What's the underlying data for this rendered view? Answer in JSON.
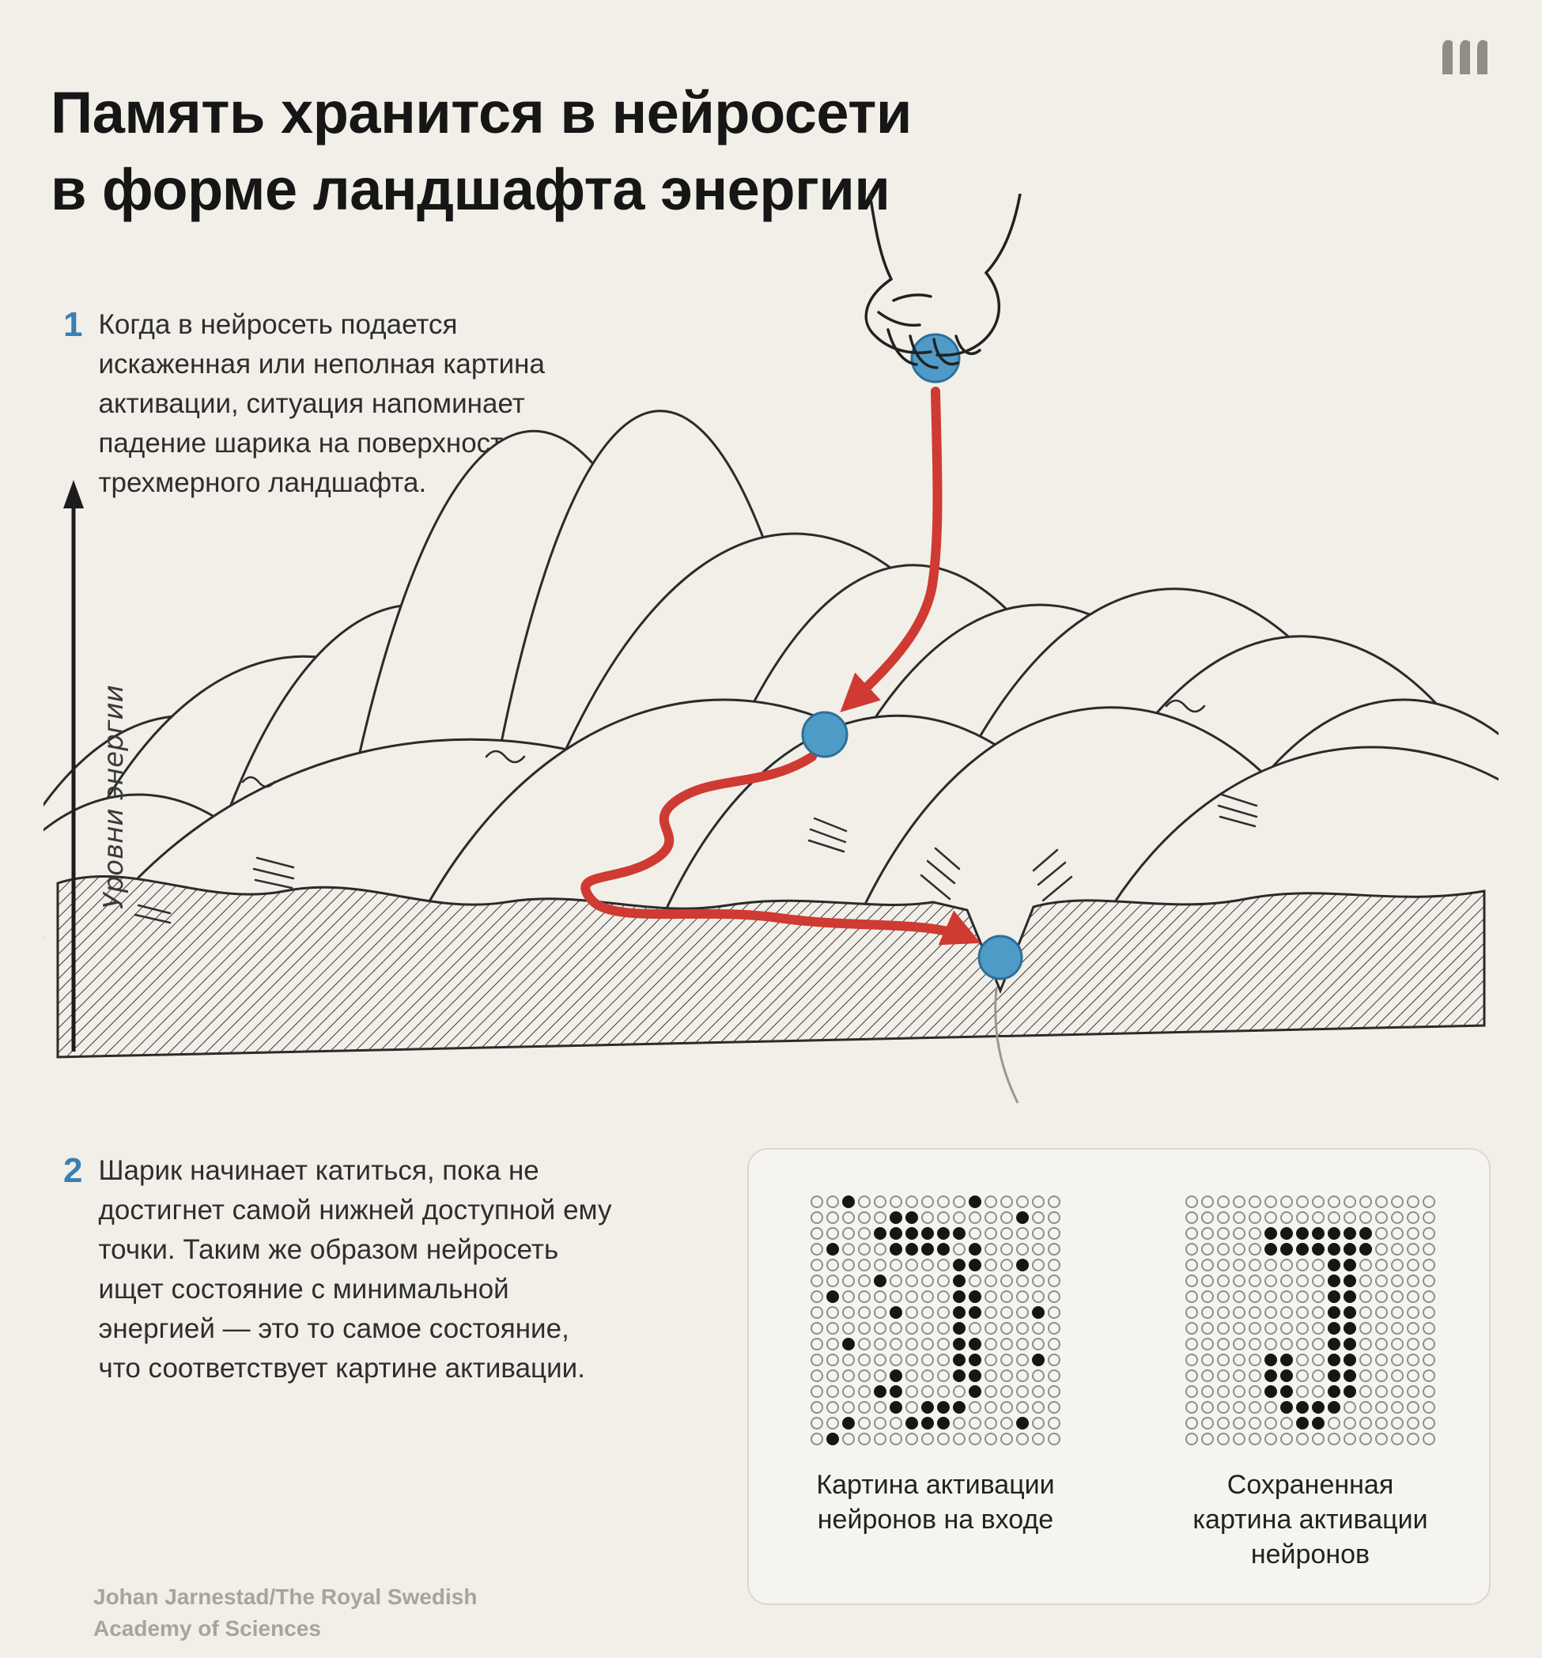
{
  "page": {
    "title_line1": "Память хранится в нейросети",
    "title_line2": "в форме ландшафта энергии",
    "credit": "Johan Jarnestad/The Royal Swedish Academy of Sciences"
  },
  "steps": [
    {
      "number": "1",
      "text": "Когда в нейросеть подается искаженная или неполная картина активации, ситуация напоминает падение шарика на поверхность трехмерного ландшафта."
    },
    {
      "number": "2",
      "text": "Шарик начинает катиться, пока не достигнет самой нижней доступной ему точки. Таким же образом нейросеть ищет состояние с минимальной энергией — это то самое состояние, что соответствует картине активации."
    }
  ],
  "illustration": {
    "axis_label": "Уровни энергии",
    "ball_color": "#4f9bc8",
    "ball_outline_color": "#2e6e99",
    "arrow_color": "#cf3a33",
    "line_color": "#2b2b2b"
  },
  "panel": {
    "grids": [
      {
        "name": "input-activation-grid",
        "label": "Картина активации нейронов на входе",
        "rows": [
          "..#.......#.....",
          ".....##......#..",
          "....######......",
          ".#...####.#.....",
          ".........##..#..",
          "....#....#......",
          ".#.......##.....",
          ".....#...##...#.",
          ".........#......",
          "..#......##.....",
          ".........##...#.",
          ".....#...##.....",
          "....##....#.....",
          ".....#.###......",
          "..#...###....#..",
          ".#.............."
        ]
      },
      {
        "name": "stored-activation-grid",
        "label": "Сохраненная картина активации нейронов",
        "rows": [
          "................",
          "................",
          ".....#######....",
          ".....#######....",
          ".........##.....",
          ".........##.....",
          ".........##.....",
          ".........##.....",
          ".........##.....",
          ".........##.....",
          ".....##..##.....",
          ".....##..##.....",
          ".....##..##.....",
          "......####......",
          ".......##.......",
          "................"
        ]
      }
    ]
  }
}
